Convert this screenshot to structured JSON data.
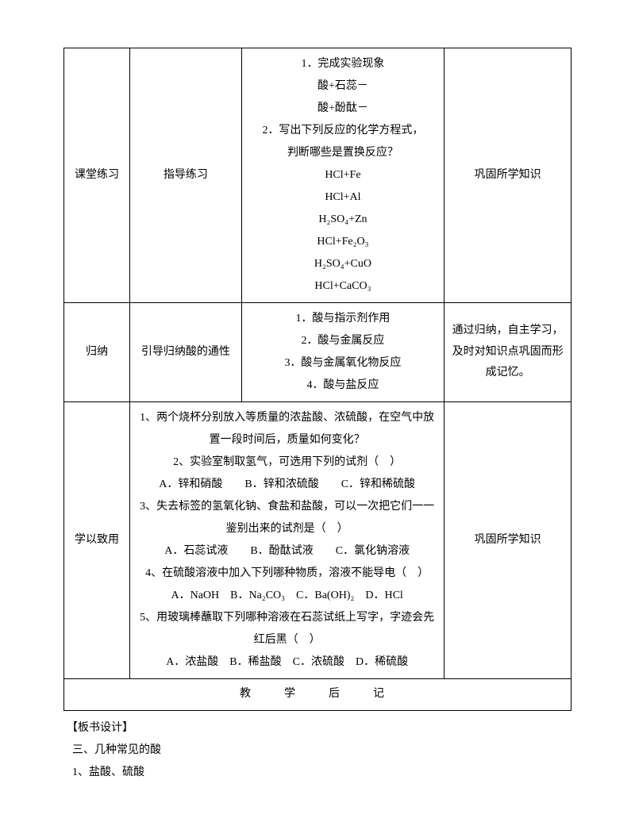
{
  "rows": {
    "r1": {
      "label": "课堂练习",
      "teacher": "指导练习",
      "student_lines": [
        "1．完成实验现象",
        "酸+石蕊－",
        "酸+酚酞－",
        "2．写出下列反应的化学方程式，",
        "判断哪些是置换反应？",
        "HCl+Fe",
        "HCl+Al",
        "H₂SO₄+Zn",
        "HCl+Fe₂O₃",
        "H₂SO₄+CuO",
        "HCl+CaCO₃"
      ],
      "purpose": "巩固所学知识"
    },
    "r2": {
      "label": "归纳",
      "teacher": "引导归纳酸的通性",
      "student_lines": [
        "1．酸与指示剂作用",
        "2．酸与金属反应",
        "3．酸与金属氧化物反应",
        "4．酸与盐反应"
      ],
      "purpose": "通过归纳，自主学习，及时对知识点巩固而形成记忆。"
    },
    "r3": {
      "label": "学以致用",
      "content_lines": [
        "1、两个烧杯分别放入等质量的浓盐酸、浓硫酸，在空气中放",
        "置一段时间后，质量如何变化？",
        "2、实验室制取氢气，可选用下列的试剂（　）",
        "A．锌和硝酸　　B．锌和浓硫酸　　C．锌和稀硫酸",
        "3、失去标签的氢氧化钠、食盐和盐酸，可以一次把它们一一",
        "鉴别出来的试剂是（　）",
        "A．石蕊试液　　B．酚酞试液　　C．氯化钠溶液",
        "4、在硫酸溶液中加入下列哪种物质，溶液不能导电（　）",
        "A．NaOH　B．Na₂CO₃　C．Ba(OH)₂　D．HCl",
        "5、用玻璃棒蘸取下列哪种溶液在石蕊试纸上写字，字迹会先",
        "红后黑（　）",
        "A．浓盐酸　B．稀盐酸　C．浓硫酸　D．稀硫酸"
      ],
      "purpose": "巩固所学知识"
    },
    "footer": "教　学　后　记"
  },
  "post": {
    "h1": "【板书设计】",
    "l1": "三、几种常见的酸",
    "l2": "1、盐酸、硫酸"
  },
  "style": {
    "font_family": "SimSun",
    "font_size_pt": 10.5,
    "line_height": 1.9,
    "border_color": "#000000",
    "text_color": "#000000",
    "background": "#ffffff",
    "table_col_widths_pct": [
      13,
      22,
      40,
      25
    ]
  }
}
